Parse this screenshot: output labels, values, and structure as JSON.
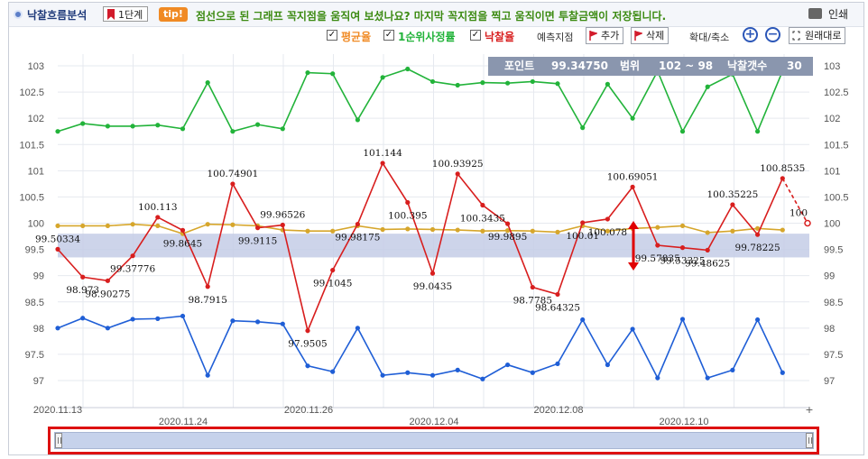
{
  "header": {
    "title": "낙찰흐름분석",
    "stage_label": "1단계",
    "tip_badge": "tip!",
    "tip_text": "점선으로 된 그래프 꼭지점을 움직여 보셨나요? 마지막 꼭지점을 찍고 움직이면 투찰금액이 저장됩니다.",
    "print_label": "인쇄"
  },
  "toolbar": {
    "check_avg": "평균율",
    "check_first": "1순위사정률",
    "check_bid": "낙찰율",
    "predict_label": "예측지점",
    "add_label": "추가",
    "delete_label": "삭제",
    "zoom_label": "확대/축소",
    "reset_label": "원래대로",
    "check_mark": "✓"
  },
  "info_panel": {
    "point_label": "포인트",
    "point_value": "99.34750",
    "range_label": "범위",
    "range_value": "102 ~ 98",
    "count_label": "낙찰갯수",
    "count_value": "30"
  },
  "colors": {
    "green": "#22b33a",
    "red": "#d81e1e",
    "yellow": "#d6a62c",
    "blue": "#1f5ed6",
    "band": "#c4cde6"
  },
  "chart_data": {
    "type": "line",
    "y_ticks": [
      "103",
      "102.5",
      "102",
      "101.5",
      "101",
      "100.5",
      "100",
      "99.5",
      "99",
      "98.5",
      "98",
      "97.5",
      "97"
    ],
    "ylim": [
      96.8,
      103.2
    ],
    "x_labels_lower": [
      "2020.11.13",
      "2020.11.26",
      "2020.12.08"
    ],
    "x_labels_upper": [
      "2020.11.24",
      "2020.12.04",
      "2020.12.10"
    ],
    "x_plus": "+",
    "band_range": [
      99.3475,
      99.8
    ],
    "series": [
      {
        "key": "green",
        "values": [
          101.75,
          101.9,
          101.85,
          101.85,
          101.87,
          101.8,
          102.68,
          101.75,
          101.88,
          101.8,
          102.87,
          102.85,
          101.97,
          102.78,
          102.94,
          102.7,
          102.63,
          102.68,
          102.67,
          102.7,
          102.66,
          101.82,
          102.65,
          102.0,
          102.9,
          101.75,
          102.6,
          102.84,
          101.75,
          102.9
        ]
      },
      {
        "key": "blue",
        "values": [
          98.0,
          98.19,
          98.0,
          98.17,
          98.18,
          98.23,
          97.1,
          98.14,
          98.12,
          98.08,
          97.28,
          97.17,
          98.0,
          97.1,
          97.15,
          97.1,
          97.2,
          97.03,
          97.3,
          97.15,
          97.32,
          98.16,
          97.3,
          97.98,
          97.05,
          98.17,
          97.05,
          97.2,
          98.16,
          97.15
        ]
      },
      {
        "key": "yellow",
        "values": [
          99.95,
          99.95,
          99.95,
          99.98,
          99.95,
          99.8,
          99.98,
          99.97,
          99.95,
          99.87,
          99.85,
          99.85,
          99.95,
          99.88,
          99.89,
          99.88,
          99.87,
          99.85,
          99.86,
          99.85,
          99.83,
          99.95,
          99.85,
          99.9,
          99.92,
          99.95,
          99.82,
          99.85,
          99.9,
          99.87
        ]
      },
      {
        "key": "red",
        "values": [
          99.50334,
          98.973,
          98.90275,
          99.37776,
          100.113,
          99.8645,
          98.7915,
          100.74901,
          99.9115,
          99.96526,
          97.9505,
          99.1045,
          99.98175,
          101.144,
          100.395,
          99.0435,
          100.93925,
          100.3435,
          99.9895,
          98.7785,
          98.64325,
          100.01,
          100.078,
          100.69051,
          99.57835,
          99.53325,
          99.48625,
          100.35225,
          99.78225,
          100.8535
        ]
      }
    ],
    "red_labels": [
      "99.50334",
      "98.973",
      "98.90275",
      "99.37776",
      "100.113",
      "99.8645",
      "98.7915",
      "100.74901",
      "99.9115",
      "99.96526",
      "97.9505",
      "99.1045",
      "99.98175",
      "101.144",
      "100.395",
      "99.0435",
      "100.93925",
      "100.3435",
      "99.9895",
      "98.7785",
      "98.64325",
      "100.01",
      "100.078",
      "100.69051",
      "99.57835",
      "99.53325",
      "99.48625",
      "100.35225",
      "99.78225",
      "100.8535"
    ],
    "predict_point": {
      "value": 100,
      "label": "100"
    }
  }
}
